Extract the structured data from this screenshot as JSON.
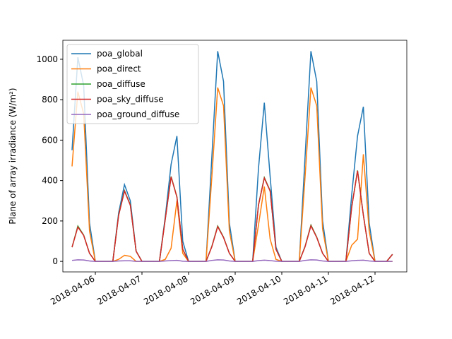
{
  "chart_data": {
    "type": "line",
    "y_label": "Plane of array irradiance (W/m²)",
    "categories": [
      null,
      null,
      null,
      null,
      "2018-04-06",
      null,
      null,
      null,
      null,
      null,
      null,
      null,
      "2018-04-07",
      null,
      null,
      null,
      null,
      null,
      null,
      null,
      "2018-04-08",
      null,
      null,
      null,
      null,
      null,
      null,
      null,
      "2018-04-09",
      null,
      null,
      null,
      null,
      null,
      null,
      null,
      "2018-04-10",
      null,
      null,
      null,
      null,
      null,
      null,
      null,
      "2018-04-11",
      null,
      null,
      null,
      null,
      null,
      null,
      null,
      "2018-04-12",
      null,
      null,
      null
    ],
    "series": [
      {
        "name": "poa_global",
        "color": "#1f77b4",
        "values": [
          550,
          1010,
          870,
          190,
          0,
          0,
          0,
          0,
          240,
          380,
          300,
          50,
          0,
          0,
          0,
          0,
          220,
          480,
          620,
          100,
          0,
          0,
          0,
          0,
          520,
          1040,
          890,
          190,
          0,
          0,
          0,
          0,
          460,
          785,
          420,
          70,
          0,
          0,
          0,
          0,
          520,
          1040,
          890,
          200,
          0,
          0,
          0,
          0,
          330,
          620,
          765,
          190,
          0,
          0,
          0,
          35
        ]
      },
      {
        "name": "poa_direct",
        "color": "#ff7f0e",
        "values": [
          470,
          840,
          730,
          150,
          0,
          0,
          0,
          0,
          10,
          30,
          25,
          0,
          0,
          0,
          0,
          0,
          10,
          65,
          300,
          40,
          0,
          0,
          0,
          0,
          420,
          860,
          770,
          150,
          0,
          0,
          0,
          0,
          180,
          370,
          110,
          10,
          0,
          0,
          0,
          0,
          420,
          860,
          770,
          160,
          0,
          0,
          0,
          0,
          80,
          110,
          530,
          150,
          0,
          0,
          0,
          0
        ]
      },
      {
        "name": "poa_diffuse",
        "color": "#2ca02c",
        "values": [
          70,
          175,
          130,
          40,
          0,
          0,
          0,
          0,
          230,
          350,
          280,
          50,
          0,
          0,
          0,
          0,
          210,
          420,
          320,
          60,
          0,
          0,
          0,
          0,
          75,
          175,
          120,
          40,
          0,
          0,
          0,
          0,
          280,
          415,
          350,
          60,
          0,
          0,
          0,
          0,
          75,
          180,
          120,
          40,
          0,
          0,
          0,
          0,
          270,
          450,
          230,
          40,
          0,
          0,
          0,
          35
        ]
      },
      {
        "name": "poa_sky_diffuse",
        "color": "#d62728",
        "values": [
          70,
          170,
          128,
          40,
          0,
          0,
          0,
          0,
          228,
          348,
          278,
          50,
          0,
          0,
          0,
          0,
          208,
          418,
          318,
          60,
          0,
          0,
          0,
          0,
          73,
          172,
          118,
          40,
          0,
          0,
          0,
          0,
          278,
          412,
          348,
          60,
          0,
          0,
          0,
          0,
          73,
          176,
          118,
          40,
          0,
          0,
          0,
          0,
          268,
          448,
          228,
          40,
          0,
          0,
          0,
          35
        ]
      },
      {
        "name": "poa_ground_diffuse",
        "color": "#9467bd",
        "values": [
          5,
          8,
          7,
          2,
          0,
          0,
          0,
          0,
          2,
          3,
          3,
          0,
          0,
          0,
          0,
          0,
          2,
          4,
          5,
          1,
          0,
          0,
          0,
          0,
          5,
          8,
          7,
          2,
          0,
          0,
          0,
          0,
          4,
          6,
          4,
          1,
          0,
          0,
          0,
          0,
          5,
          8,
          7,
          2,
          0,
          0,
          0,
          0,
          3,
          5,
          6,
          2,
          0,
          0,
          0,
          0
        ]
      }
    ],
    "ylim": [
      -52,
      1094
    ],
    "yticks": [
      0,
      200,
      400,
      600,
      800,
      1000
    ],
    "legend": "upper left"
  }
}
